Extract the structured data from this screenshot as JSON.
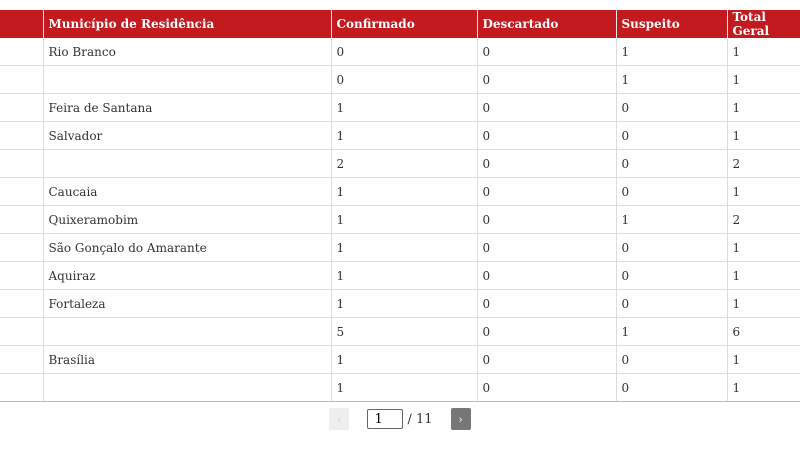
{
  "table": {
    "headers": [
      "",
      "Município de Residência",
      "Confirmado",
      "Descartado",
      "Suspeito",
      "Total Geral"
    ],
    "rows": [
      [
        "",
        "Rio Branco",
        "0",
        "0",
        "1",
        "1"
      ],
      [
        "",
        "",
        "0",
        "0",
        "1",
        "1"
      ],
      [
        "",
        "Feira de Santana",
        "1",
        "0",
        "0",
        "1"
      ],
      [
        "",
        "Salvador",
        "1",
        "0",
        "0",
        "1"
      ],
      [
        "",
        "",
        "2",
        "0",
        "0",
        "2"
      ],
      [
        "",
        "Caucaia",
        "1",
        "0",
        "0",
        "1"
      ],
      [
        "",
        "Quixeramobim",
        "1",
        "0",
        "1",
        "2"
      ],
      [
        "",
        "São Gonçalo do Amarante",
        "1",
        "0",
        "0",
        "1"
      ],
      [
        "",
        "Aquiraz",
        "1",
        "0",
        "0",
        "1"
      ],
      [
        "",
        "Fortaleza",
        "1",
        "0",
        "0",
        "1"
      ],
      [
        "",
        "",
        "5",
        "0",
        "1",
        "6"
      ],
      [
        "",
        "Brasília",
        "1",
        "0",
        "0",
        "1"
      ],
      [
        "",
        "",
        "1",
        "0",
        "0",
        "1"
      ]
    ]
  },
  "pager": {
    "prev": "‹",
    "next": "›",
    "page": "1",
    "total": "/ 11"
  },
  "colors": {
    "header": "#c21a1f"
  }
}
